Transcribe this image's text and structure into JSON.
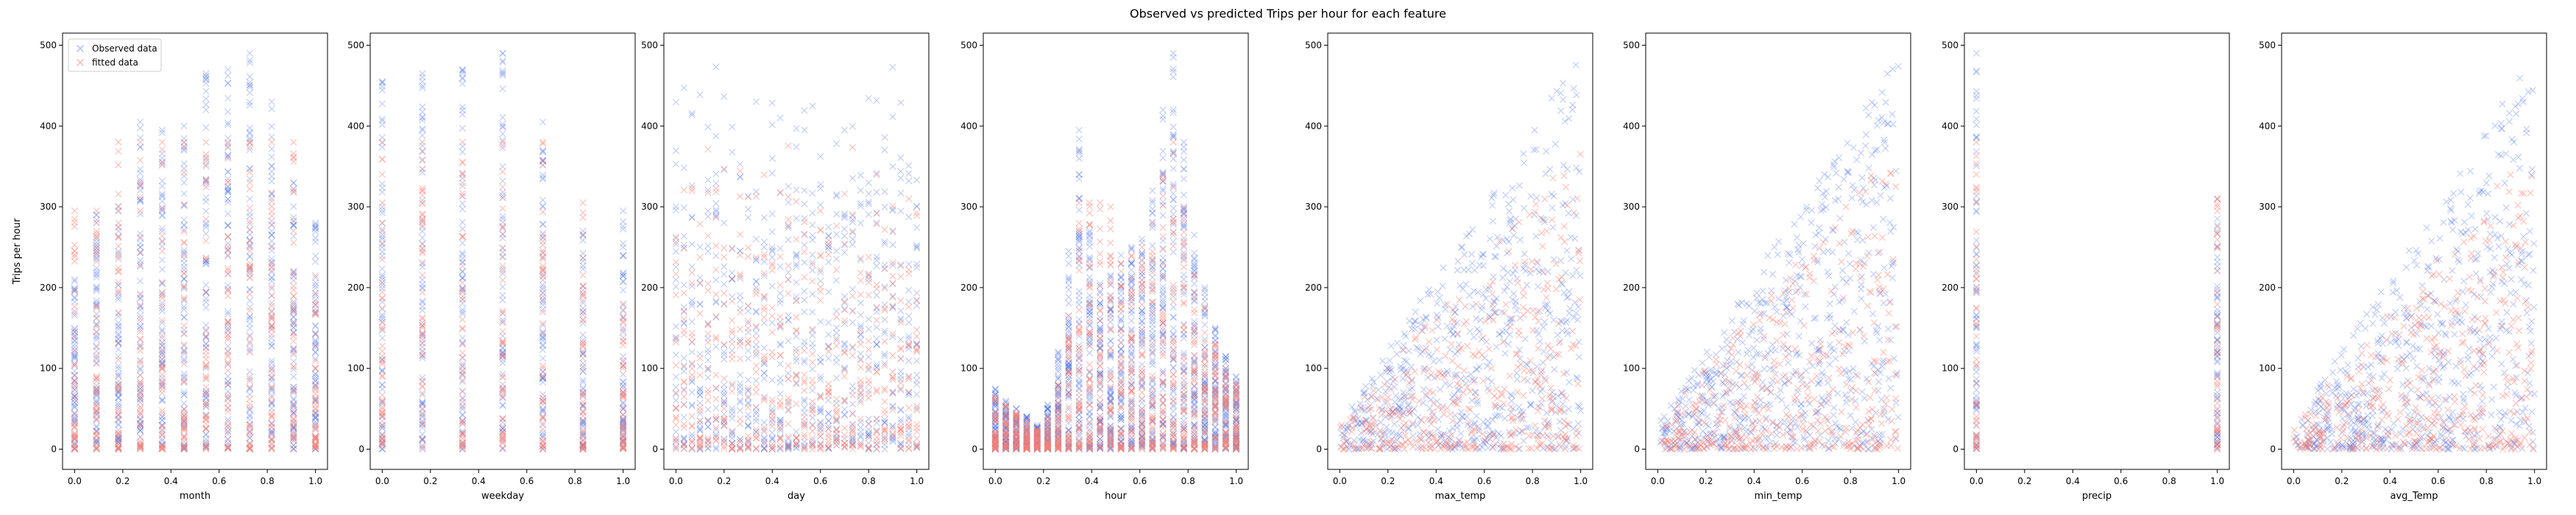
{
  "figure": {
    "suptitle": "Observed vs predicted Trips per hour for each feature"
  },
  "colors": {
    "observed": "#4169e1",
    "fitted": "#fa8072"
  },
  "legend": {
    "placement": "upper-left",
    "panel_index": 0,
    "entries": [
      "Observed data",
      "fitted data"
    ]
  },
  "chart_data": [
    {
      "type": "scatter",
      "xlabel": "month",
      "ylabel": "Trips per hour",
      "xlim": [
        -0.05,
        1.05
      ],
      "ylim": [
        -25,
        515
      ],
      "xticks": [
        "0.0",
        "0.2",
        "0.4",
        "0.6",
        "0.8",
        "1.0"
      ],
      "yticks": [
        "0",
        "100",
        "200",
        "300",
        "400",
        "500"
      ],
      "series": [
        {
          "name": "Observed data",
          "x_discrete": [
            0.0,
            0.0909,
            0.1818,
            0.2727,
            0.3636,
            0.4545,
            0.5455,
            0.6364,
            0.7273,
            0.8182,
            0.9091,
            1.0
          ],
          "y_max": [
            210,
            290,
            300,
            405,
            395,
            400,
            465,
            470,
            490,
            430,
            330,
            280
          ]
        },
        {
          "name": "fitted data",
          "x_discrete": [
            0.0,
            0.0909,
            0.1818,
            0.2727,
            0.3636,
            0.4545,
            0.5455,
            0.6364,
            0.7273,
            0.8182,
            0.9091,
            1.0
          ],
          "y_max": [
            295,
            295,
            380,
            380,
            380,
            380,
            380,
            380,
            380,
            380,
            380,
            215
          ]
        }
      ]
    },
    {
      "type": "scatter",
      "xlabel": "weekday",
      "ylabel": "",
      "xlim": [
        -0.05,
        1.05
      ],
      "ylim": [
        -25,
        515
      ],
      "xticks": [
        "0.0",
        "0.2",
        "0.4",
        "0.6",
        "0.8",
        "1.0"
      ],
      "yticks": [
        "0",
        "100",
        "200",
        "300",
        "400",
        "500"
      ],
      "series": [
        {
          "name": "Observed data",
          "x_discrete": [
            0.0,
            0.1667,
            0.3333,
            0.5,
            0.6667,
            0.8333,
            1.0
          ],
          "y_max": [
            455,
            465,
            470,
            490,
            405,
            270,
            295
          ]
        },
        {
          "name": "fitted data",
          "x_discrete": [
            0.0,
            0.1667,
            0.3333,
            0.5,
            0.6667,
            0.8333,
            1.0
          ],
          "y_max": [
            380,
            380,
            380,
            380,
            380,
            305,
            180
          ]
        }
      ]
    },
    {
      "type": "scatter",
      "xlabel": "day",
      "ylabel": "",
      "xlim": [
        -0.05,
        1.05
      ],
      "ylim": [
        -25,
        515
      ],
      "xticks": [
        "0.0",
        "0.2",
        "0.4",
        "0.6",
        "0.8",
        "1.0"
      ],
      "yticks": [
        "0",
        "100",
        "200",
        "300",
        "400",
        "500"
      ],
      "series": [
        {
          "name": "Observed data",
          "x_range": [
            0.0,
            1.0
          ],
          "n_discrete": 31,
          "y_max": 490
        },
        {
          "name": "fitted data",
          "x_range": [
            0.0,
            1.0
          ],
          "n_discrete": 31,
          "y_max": 380
        }
      ]
    },
    {
      "type": "scatter",
      "xlabel": "hour",
      "ylabel": "",
      "xlim": [
        -0.05,
        1.05
      ],
      "ylim": [
        -25,
        515
      ],
      "xticks": [
        "0.0",
        "0.2",
        "0.4",
        "0.6",
        "0.8",
        "1.0"
      ],
      "yticks": [
        "0",
        "100",
        "200",
        "300",
        "400",
        "500"
      ],
      "series": [
        {
          "name": "Observed data",
          "x_discrete": [
            0.0,
            0.0435,
            0.087,
            0.1304,
            0.1739,
            0.2174,
            0.2609,
            0.3043,
            0.3478,
            0.3913,
            0.4348,
            0.4783,
            0.5217,
            0.5652,
            0.6087,
            0.6522,
            0.6957,
            0.7391,
            0.7826,
            0.8261,
            0.8696,
            0.913,
            0.9565,
            1.0
          ],
          "y_max": [
            75,
            60,
            50,
            40,
            30,
            55,
            120,
            245,
            395,
            270,
            205,
            215,
            240,
            250,
            260,
            320,
            420,
            490,
            380,
            265,
            200,
            150,
            115,
            90
          ]
        },
        {
          "name": "fitted data",
          "x_discrete": [
            0.0,
            0.0435,
            0.087,
            0.1304,
            0.1739,
            0.2174,
            0.2609,
            0.3043,
            0.3478,
            0.3913,
            0.4348,
            0.4783,
            0.5217,
            0.5652,
            0.6087,
            0.6522,
            0.6957,
            0.7391,
            0.7826,
            0.8261,
            0.8696,
            0.913,
            0.9565,
            1.0
          ],
          "y_max": [
            65,
            55,
            45,
            35,
            25,
            40,
            80,
            165,
            305,
            305,
            305,
            300,
            230,
            240,
            250,
            280,
            340,
            380,
            300,
            215,
            175,
            130,
            100,
            80
          ]
        }
      ]
    },
    {
      "type": "scatter",
      "xlabel": "max_temp",
      "ylabel": "",
      "xlim": [
        -0.05,
        1.05
      ],
      "ylim": [
        -25,
        515
      ],
      "xticks": [
        "0.0",
        "0.2",
        "0.4",
        "0.6",
        "0.8",
        "1.0"
      ],
      "yticks": [
        "0",
        "100",
        "200",
        "300",
        "400",
        "500"
      ],
      "series": [
        {
          "name": "Observed data",
          "x_range": [
            0.0,
            1.0
          ],
          "y_max": 490
        },
        {
          "name": "fitted data",
          "x_range": [
            0.0,
            1.0
          ],
          "y_max": 380
        }
      ]
    },
    {
      "type": "scatter",
      "xlabel": "min_temp",
      "ylabel": "",
      "xlim": [
        -0.05,
        1.05
      ],
      "ylim": [
        -25,
        515
      ],
      "xticks": [
        "0.0",
        "0.2",
        "0.4",
        "0.6",
        "0.8",
        "1.0"
      ],
      "yticks": [
        "0",
        "100",
        "200",
        "300",
        "400",
        "500"
      ],
      "series": [
        {
          "name": "Observed data",
          "x_range": [
            0.0,
            1.0
          ],
          "y_max": 490
        },
        {
          "name": "fitted data",
          "x_range": [
            0.0,
            1.0
          ],
          "y_max": 380
        }
      ]
    },
    {
      "type": "scatter",
      "xlabel": "precip",
      "ylabel": "",
      "xlim": [
        -0.05,
        1.05
      ],
      "ylim": [
        -25,
        515
      ],
      "xticks": [
        "0.0",
        "0.2",
        "0.4",
        "0.6",
        "0.8",
        "1.0"
      ],
      "yticks": [
        "0",
        "100",
        "200",
        "300",
        "400",
        "500"
      ],
      "series": [
        {
          "name": "Observed data",
          "x_discrete": [
            0.0,
            1.0
          ],
          "y_max": [
            490,
            310
          ]
        },
        {
          "name": "fitted data",
          "x_discrete": [
            0.0,
            1.0
          ],
          "y_max": [
            380,
            310
          ]
        }
      ]
    },
    {
      "type": "scatter",
      "xlabel": "avg_Temp",
      "ylabel": "",
      "xlim": [
        -0.05,
        1.05
      ],
      "ylim": [
        -25,
        515
      ],
      "xticks": [
        "0.0",
        "0.2",
        "0.4",
        "0.6",
        "0.8",
        "1.0"
      ],
      "yticks": [
        "0",
        "100",
        "200",
        "300",
        "400",
        "500"
      ],
      "series": [
        {
          "name": "Observed data",
          "x_range": [
            0.0,
            1.0
          ],
          "y_max": 490
        },
        {
          "name": "fitted data",
          "x_range": [
            0.0,
            1.0
          ],
          "y_max": 380
        }
      ]
    }
  ]
}
